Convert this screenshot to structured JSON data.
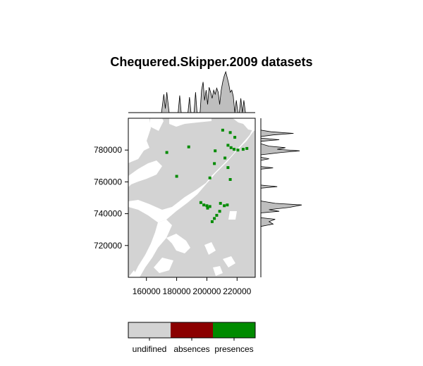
{
  "chart_data": {
    "type": "heatmap",
    "title": "Chequered.Skipper.2009 datasets",
    "xlabel": "",
    "ylabel": "",
    "xlim": [
      148000,
      232000
    ],
    "ylim": [
      700000,
      800000
    ],
    "x_ticks": [
      160000,
      180000,
      200000,
      220000
    ],
    "y_ticks": [
      720000,
      740000,
      760000,
      780000
    ],
    "x_tick_labels": [
      "160000",
      "180000",
      "200000",
      "220000"
    ],
    "y_tick_labels": [
      "720000",
      "740000",
      "760000",
      "780000"
    ],
    "legend": {
      "position": "bottom",
      "categories": [
        "undifined",
        "absences",
        "presences"
      ],
      "colors": [
        "#d3d3d3",
        "#8b0000",
        "#008b00"
      ]
    },
    "colors": {
      "undefined_area": "#d3d3d3",
      "gap": "#ffffff",
      "presence": "#008b00",
      "marginal_fill": "#bebebe"
    },
    "presences": [
      {
        "x": 210500,
        "y": 792500
      },
      {
        "x": 215500,
        "y": 791000
      },
      {
        "x": 218500,
        "y": 788000
      },
      {
        "x": 214000,
        "y": 783000
      },
      {
        "x": 216000,
        "y": 781500
      },
      {
        "x": 218000,
        "y": 780500
      },
      {
        "x": 220500,
        "y": 780000
      },
      {
        "x": 224000,
        "y": 780500
      },
      {
        "x": 226500,
        "y": 781000
      },
      {
        "x": 205500,
        "y": 779500
      },
      {
        "x": 188000,
        "y": 782000
      },
      {
        "x": 173500,
        "y": 778500
      },
      {
        "x": 212000,
        "y": 775000
      },
      {
        "x": 205000,
        "y": 771500
      },
      {
        "x": 214000,
        "y": 769000
      },
      {
        "x": 202000,
        "y": 762500
      },
      {
        "x": 215500,
        "y": 761500
      },
      {
        "x": 180000,
        "y": 763500
      },
      {
        "x": 196000,
        "y": 747000
      },
      {
        "x": 198000,
        "y": 745500
      },
      {
        "x": 200000,
        "y": 745000
      },
      {
        "x": 202000,
        "y": 744500
      },
      {
        "x": 200500,
        "y": 743500
      },
      {
        "x": 209000,
        "y": 746500
      },
      {
        "x": 211500,
        "y": 745000
      },
      {
        "x": 213500,
        "y": 745500
      },
      {
        "x": 208500,
        "y": 741500
      },
      {
        "x": 206500,
        "y": 739000
      },
      {
        "x": 205000,
        "y": 737000
      },
      {
        "x": 203500,
        "y": 735000
      }
    ],
    "x_marginal_density": [
      {
        "x": 170000,
        "y": 0.0
      },
      {
        "x": 171500,
        "y": 0.45
      },
      {
        "x": 172500,
        "y": 0.1
      },
      {
        "x": 173500,
        "y": 0.5
      },
      {
        "x": 175000,
        "y": 0.0
      },
      {
        "x": 181000,
        "y": 0.0
      },
      {
        "x": 182000,
        "y": 0.42
      },
      {
        "x": 183000,
        "y": 0.0
      },
      {
        "x": 187500,
        "y": 0.0
      },
      {
        "x": 188500,
        "y": 0.38
      },
      {
        "x": 189500,
        "y": 0.0
      },
      {
        "x": 191500,
        "y": 0.0
      },
      {
        "x": 192500,
        "y": 0.5
      },
      {
        "x": 193500,
        "y": 0.0
      },
      {
        "x": 195500,
        "y": 0.0
      },
      {
        "x": 196500,
        "y": 0.55
      },
      {
        "x": 197500,
        "y": 0.75
      },
      {
        "x": 198500,
        "y": 0.3
      },
      {
        "x": 199500,
        "y": 0.55
      },
      {
        "x": 200500,
        "y": 0.2
      },
      {
        "x": 201500,
        "y": 0.62
      },
      {
        "x": 202500,
        "y": 0.5
      },
      {
        "x": 203500,
        "y": 0.35
      },
      {
        "x": 204500,
        "y": 0.55
      },
      {
        "x": 205500,
        "y": 0.45
      },
      {
        "x": 206500,
        "y": 0.6
      },
      {
        "x": 207500,
        "y": 0.5
      },
      {
        "x": 208500,
        "y": 0.2
      },
      {
        "x": 209500,
        "y": 0.55
      },
      {
        "x": 210500,
        "y": 0.75
      },
      {
        "x": 211500,
        "y": 0.9
      },
      {
        "x": 212500,
        "y": 1.0
      },
      {
        "x": 213500,
        "y": 0.85
      },
      {
        "x": 214500,
        "y": 0.7
      },
      {
        "x": 215500,
        "y": 0.5
      },
      {
        "x": 216500,
        "y": 0.55
      },
      {
        "x": 217500,
        "y": 0.4
      },
      {
        "x": 218500,
        "y": 0.0
      },
      {
        "x": 219500,
        "y": 0.3
      },
      {
        "x": 220500,
        "y": 0.0
      },
      {
        "x": 221500,
        "y": 0.0
      },
      {
        "x": 222500,
        "y": 0.35
      },
      {
        "x": 223500,
        "y": 0.0
      },
      {
        "x": 224500,
        "y": 0.3
      },
      {
        "x": 225500,
        "y": 0.0
      }
    ],
    "y_marginal_density": [
      {
        "y": 732000,
        "x": 0.0
      },
      {
        "y": 733500,
        "x": 0.3
      },
      {
        "y": 735000,
        "x": 0.2
      },
      {
        "y": 736500,
        "x": 0.35
      },
      {
        "y": 737500,
        "x": 0.0
      },
      {
        "y": 740500,
        "x": 0.0
      },
      {
        "y": 741500,
        "x": 0.45
      },
      {
        "y": 742500,
        "x": 0.2
      },
      {
        "y": 744000,
        "x": 0.7
      },
      {
        "y": 745500,
        "x": 1.0
      },
      {
        "y": 746500,
        "x": 0.35
      },
      {
        "y": 748000,
        "x": 0.0
      },
      {
        "y": 756000,
        "x": 0.0
      },
      {
        "y": 757000,
        "x": 0.4
      },
      {
        "y": 758000,
        "x": 0.0
      },
      {
        "y": 768000,
        "x": 0.0
      },
      {
        "y": 768800,
        "x": 0.3
      },
      {
        "y": 769600,
        "x": 0.0
      },
      {
        "y": 773500,
        "x": 0.0
      },
      {
        "y": 774500,
        "x": 0.2
      },
      {
        "y": 775500,
        "x": 0.0
      },
      {
        "y": 777000,
        "x": 0.0
      },
      {
        "y": 778500,
        "x": 0.5
      },
      {
        "y": 779500,
        "x": 0.95
      },
      {
        "y": 780500,
        "x": 0.4
      },
      {
        "y": 781500,
        "x": 0.6
      },
      {
        "y": 782500,
        "x": 0.2
      },
      {
        "y": 784000,
        "x": 0.0
      },
      {
        "y": 785500,
        "x": 0.0
      },
      {
        "y": 786500,
        "x": 0.45
      },
      {
        "y": 787500,
        "x": 0.0
      },
      {
        "y": 788500,
        "x": 0.0
      },
      {
        "y": 789500,
        "x": 0.3
      },
      {
        "y": 790500,
        "x": 0.8
      },
      {
        "y": 791500,
        "x": 0.25
      },
      {
        "y": 792500,
        "x": 0.0
      }
    ]
  }
}
